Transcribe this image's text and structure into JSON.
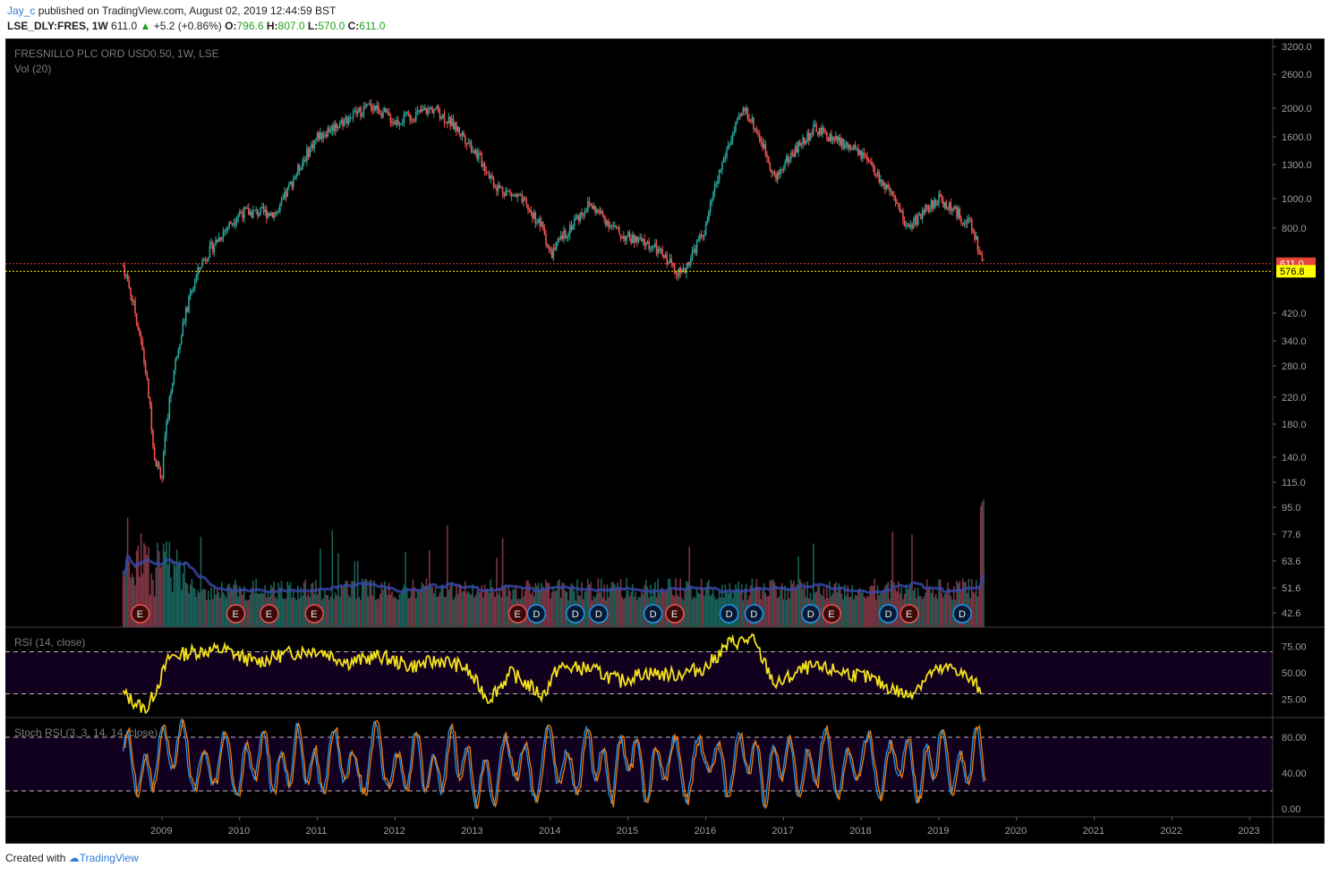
{
  "header": {
    "author": "Jay_c",
    "published": "published on TradingView.com, August 02, 2019 12:44:59 BST",
    "symbol": "LSE_DLY:FRES, 1W",
    "last": "611.0",
    "change": "+5.2 (+0.86%)",
    "o_label": "O:",
    "o_value": "796.6",
    "h_label": "H:",
    "h_value": "807.0",
    "l_label": "L:",
    "l_value": "570.0",
    "c_label": "C:",
    "c_value": "611.0"
  },
  "footer": {
    "created_with": "Created with",
    "brand": "TradingView"
  },
  "colors": {
    "background": "#000000",
    "up": "#26a69a",
    "down": "#ef5350",
    "rsi": "#f2e01c",
    "rsi_band": "#12001f",
    "stoch_k": "#2196f3",
    "stoch_d": "#f57c00",
    "price_label": "#e8463a",
    "support_label": "#ffff00",
    "volume_ma": "#1a237e"
  },
  "chart_data": [
    {
      "type": "candlestick",
      "title": "FRESNILLO PLC ORD USD0.50, 1W, LSE",
      "subtitle": "Vol (20)",
      "scale": "log",
      "y_ticks": [
        "3200.0",
        "2600.0",
        "2000.0",
        "1600.0",
        "1300.0",
        "1000.0",
        "800.0",
        "420.0",
        "340.0",
        "280.0",
        "220.0",
        "180.0",
        "140.0",
        "115.0",
        "95.0",
        "77.6",
        "63.6",
        "51.6",
        "42.6"
      ],
      "x_ticks": [
        "2009",
        "2010",
        "2011",
        "2012",
        "2013",
        "2014",
        "2015",
        "2016",
        "2017",
        "2018",
        "2019",
        "2020",
        "2021",
        "2022",
        "2023"
      ],
      "last_price": "611.0",
      "support_level": "576.8",
      "series": [
        {
          "x": [
            2008.5,
            2008.9,
            2009.0,
            2009.5,
            2010.0,
            2010.5,
            2011.0,
            2011.7,
            2012.0,
            2012.5,
            2012.9,
            2013.3,
            2013.6,
            2013.9,
            2014.0,
            2014.5,
            2014.9,
            2015.3,
            2015.7,
            2016.0,
            2016.5,
            2016.9,
            2017.0,
            2017.4,
            2018.0,
            2018.6,
            2019.0,
            2019.4,
            2019.58
          ],
          "values": [
            600,
            140,
            120,
            610,
            900,
            900,
            1600,
            2050,
            1800,
            2000,
            1600,
            1100,
            1000,
            800,
            650,
            960,
            760,
            700,
            560,
            800,
            2000,
            1150,
            1300,
            1700,
            1400,
            800,
            1000,
            820,
            611
          ]
        }
      ],
      "event_markers": [
        {
          "label": "E",
          "x": 2008.72
        },
        {
          "label": "E",
          "x": 2009.95
        },
        {
          "label": "E",
          "x": 2010.38
        },
        {
          "label": "E",
          "x": 2010.96
        },
        {
          "label": "E",
          "x": 2013.58
        },
        {
          "label": "D",
          "x": 2013.82
        },
        {
          "label": "D",
          "x": 2014.32
        },
        {
          "label": "D",
          "x": 2014.62
        },
        {
          "label": "D",
          "x": 2015.32
        },
        {
          "label": "E",
          "x": 2015.6
        },
        {
          "label": "D",
          "x": 2016.3
        },
        {
          "label": "D",
          "x": 2016.62
        },
        {
          "label": "D",
          "x": 2017.35
        },
        {
          "label": "E",
          "x": 2017.62
        },
        {
          "label": "D",
          "x": 2018.35
        },
        {
          "label": "E",
          "x": 2018.62
        },
        {
          "label": "D",
          "x": 2019.3
        }
      ]
    },
    {
      "type": "line",
      "title": "RSI (14, close)",
      "y_ticks": [
        "75.00",
        "50.00",
        "25.00"
      ],
      "band": [
        30,
        70
      ],
      "series": [
        {
          "x": [
            2008.5,
            2008.8,
            2009.1,
            2009.4,
            2009.8,
            2010.2,
            2010.6,
            2011.0,
            2011.4,
            2011.8,
            2012.2,
            2012.6,
            2012.9,
            2013.2,
            2013.5,
            2013.9,
            2014.1,
            2014.5,
            2014.9,
            2015.2,
            2015.6,
            2016.0,
            2016.3,
            2016.6,
            2016.9,
            2017.3,
            2017.7,
            2018.1,
            2018.6,
            2018.9,
            2019.2,
            2019.55
          ],
          "values": [
            30,
            14,
            65,
            70,
            72,
            60,
            68,
            72,
            60,
            66,
            56,
            62,
            55,
            25,
            50,
            28,
            55,
            54,
            42,
            50,
            48,
            55,
            78,
            82,
            38,
            55,
            52,
            45,
            28,
            50,
            55,
            34
          ]
        }
      ]
    },
    {
      "type": "line",
      "title": "Stoch RSI (3, 3, 14, 14, close)",
      "y_ticks": [
        "80.00",
        "40.00",
        "0.00"
      ],
      "band": [
        20,
        80
      ],
      "series": [
        {
          "name": "",
          "x": [
            2008.5,
            2008.75,
            2009.0,
            2009.25,
            2009.5,
            2009.75,
            2010.0,
            2010.25,
            2010.5,
            2010.75,
            2011.0,
            2011.25,
            2011.5,
            2011.75,
            2012.0,
            2012.25,
            2012.5,
            2012.75,
            2013.0,
            2013.25,
            2013.5,
            2013.75,
            2014.0,
            2014.25,
            2014.5,
            2014.75,
            2015.0,
            2015.25,
            2015.5,
            2015.75,
            2016.0,
            2016.25,
            2016.5,
            2016.75,
            2017.0,
            2017.25,
            2017.5,
            2017.75,
            2018.0,
            2018.25,
            2018.5,
            2018.75,
            2019.0,
            2019.25,
            2019.45,
            2019.58
          ],
          "values": [
            90,
            5,
            95,
            95,
            10,
            80,
            15,
            85,
            20,
            90,
            10,
            95,
            5,
            95,
            10,
            80,
            5,
            95,
            5,
            5,
            90,
            5,
            90,
            10,
            95,
            5,
            95,
            5,
            85,
            10,
            90,
            15,
            95,
            5,
            80,
            10,
            90,
            5,
            90,
            15,
            85,
            5,
            95,
            10,
            95,
            30
          ]
        }
      ]
    }
  ]
}
